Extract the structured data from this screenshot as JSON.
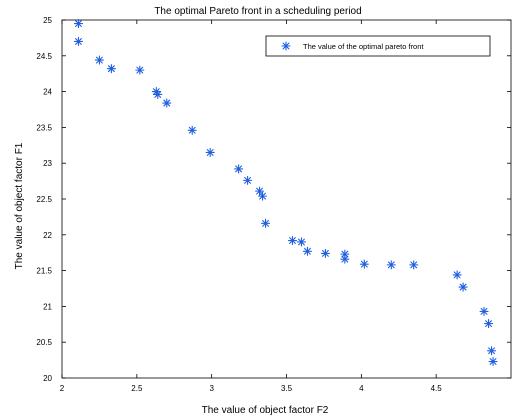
{
  "chart_data": {
    "type": "scatter",
    "title": "The optimal Pareto front in a scheduling period",
    "xlabel": "The value of object factor F2",
    "ylabel": "The value of object factor F1",
    "xlim": [
      2,
      5
    ],
    "ylim": [
      20,
      25
    ],
    "xticks": [
      "2",
      "2.5",
      "3",
      "3.5",
      "4",
      "4.5"
    ],
    "yticks": [
      "20",
      "20.5",
      "21",
      "21.5",
      "22",
      "22.5",
      "23",
      "23.5",
      "24",
      "24.5",
      "25"
    ],
    "grid": false,
    "legend_position": "top-right",
    "marker": "asterisk",
    "series": [
      {
        "name": "The value of the optimal pareto front",
        "color": "#1f5fe0",
        "points": [
          [
            2.11,
            24.95
          ],
          [
            2.11,
            24.7
          ],
          [
            2.25,
            24.44
          ],
          [
            2.33,
            24.32
          ],
          [
            2.52,
            24.3
          ],
          [
            2.63,
            24.0
          ],
          [
            2.64,
            23.96
          ],
          [
            2.7,
            23.84
          ],
          [
            2.87,
            23.46
          ],
          [
            2.99,
            23.15
          ],
          [
            3.18,
            22.92
          ],
          [
            3.24,
            22.76
          ],
          [
            3.32,
            22.61
          ],
          [
            3.34,
            22.54
          ],
          [
            3.36,
            22.16
          ],
          [
            3.54,
            21.92
          ],
          [
            3.6,
            21.9
          ],
          [
            3.64,
            21.77
          ],
          [
            3.76,
            21.74
          ],
          [
            3.89,
            21.73
          ],
          [
            3.89,
            21.66
          ],
          [
            4.02,
            21.59
          ],
          [
            4.2,
            21.58
          ],
          [
            4.35,
            21.58
          ],
          [
            4.64,
            21.44
          ],
          [
            4.68,
            21.27
          ],
          [
            4.82,
            20.93
          ],
          [
            4.85,
            20.76
          ],
          [
            4.87,
            20.38
          ],
          [
            4.88,
            20.23
          ]
        ]
      }
    ]
  }
}
